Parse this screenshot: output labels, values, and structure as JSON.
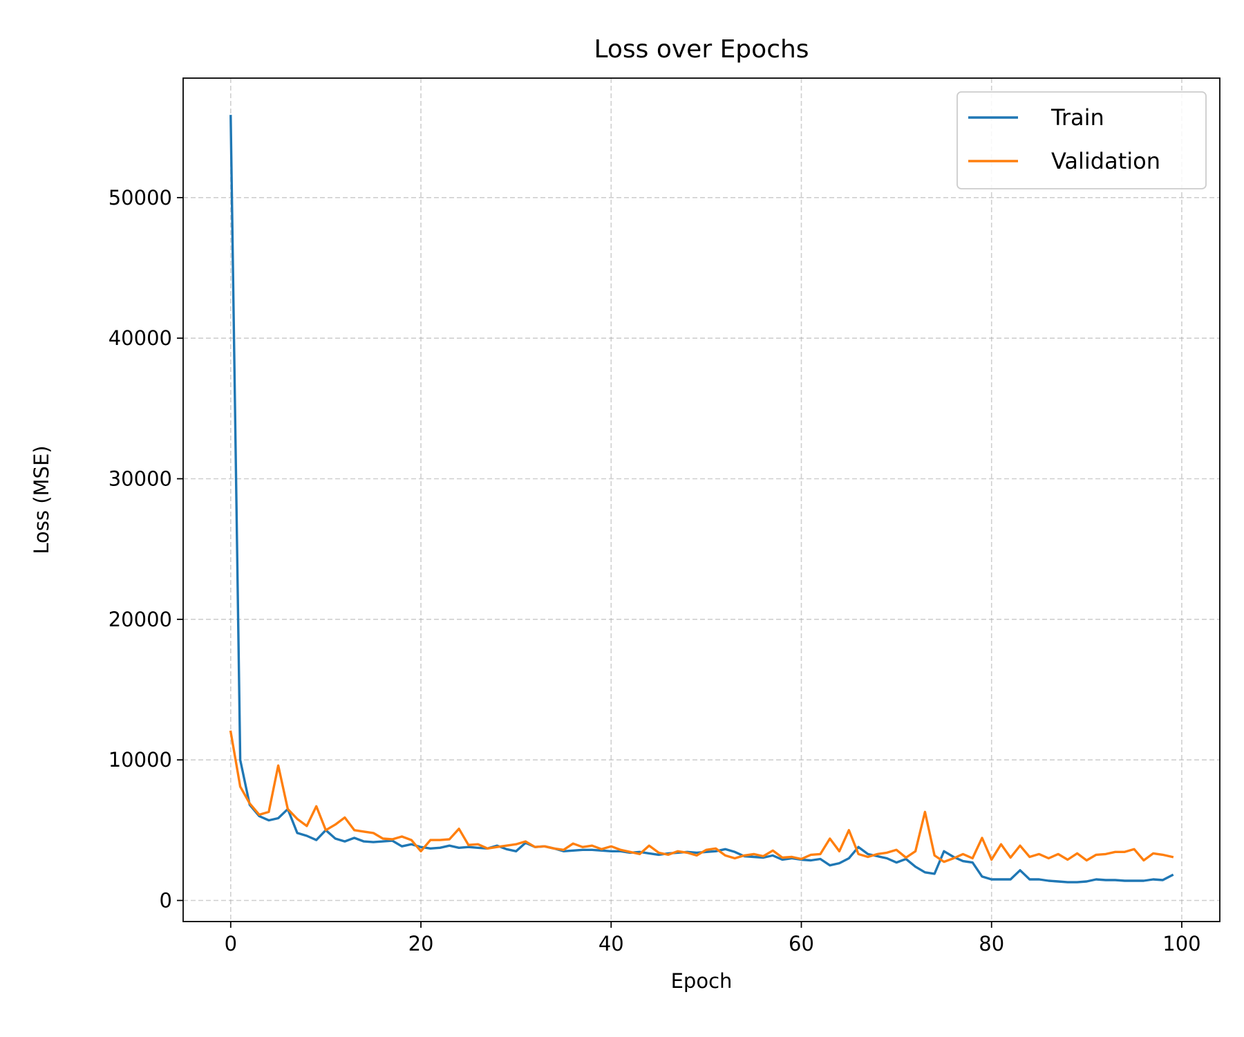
{
  "chart_data": {
    "type": "line",
    "title": "Loss over Epochs",
    "xlabel": "Epoch",
    "ylabel": "Loss (MSE)",
    "xlim": [
      -5,
      104
    ],
    "ylim": [
      -1500,
      58500
    ],
    "xticks": [
      0,
      20,
      40,
      60,
      80,
      100
    ],
    "yticks": [
      0,
      10000,
      20000,
      30000,
      40000,
      50000
    ],
    "grid": true,
    "legend_position": "top-right",
    "x": [
      0,
      1,
      2,
      3,
      4,
      5,
      6,
      7,
      8,
      9,
      10,
      11,
      12,
      13,
      14,
      15,
      16,
      17,
      18,
      19,
      20,
      21,
      22,
      23,
      24,
      25,
      26,
      27,
      28,
      29,
      30,
      31,
      32,
      33,
      34,
      35,
      36,
      37,
      38,
      39,
      40,
      41,
      42,
      43,
      44,
      45,
      46,
      47,
      48,
      49,
      50,
      51,
      52,
      53,
      54,
      55,
      56,
      57,
      58,
      59,
      60,
      61,
      62,
      63,
      64,
      65,
      66,
      67,
      68,
      69,
      70,
      71,
      72,
      73,
      74,
      75,
      76,
      77,
      78,
      79,
      80,
      81,
      82,
      83,
      84,
      85,
      86,
      87,
      88,
      89,
      90,
      91,
      92,
      93,
      94,
      95,
      96,
      97,
      98,
      99
    ],
    "series": [
      {
        "name": "Train",
        "color": "#1f77b4",
        "values": [
          55800,
          10000,
          6800,
          6000,
          5700,
          5850,
          6500,
          4800,
          4600,
          4300,
          5000,
          4400,
          4200,
          4450,
          4200,
          4150,
          4200,
          4250,
          3850,
          4000,
          3800,
          3700,
          3750,
          3900,
          3750,
          3800,
          3750,
          3700,
          3900,
          3650,
          3500,
          4100,
          3800,
          3850,
          3700,
          3500,
          3550,
          3600,
          3600,
          3550,
          3500,
          3500,
          3400,
          3450,
          3350,
          3250,
          3350,
          3400,
          3450,
          3400,
          3450,
          3500,
          3650,
          3450,
          3150,
          3100,
          3050,
          3200,
          2900,
          3000,
          2900,
          2850,
          2950,
          2500,
          2650,
          3000,
          3800,
          3300,
          3150,
          3000,
          2700,
          2950,
          2400,
          2000,
          1900,
          3500,
          3100,
          2800,
          2700,
          1700,
          1500,
          1500,
          1500,
          2150,
          1500,
          1500,
          1400,
          1350,
          1300,
          1300,
          1350,
          1500,
          1450,
          1450,
          1400,
          1400,
          1400,
          1500,
          1450,
          1800
        ]
      },
      {
        "name": "Validation",
        "color": "#ff7f0e",
        "values": [
          12000,
          8100,
          6900,
          6100,
          6300,
          9600,
          6500,
          5800,
          5300,
          6700,
          5000,
          5400,
          5900,
          5000,
          4900,
          4800,
          4400,
          4350,
          4550,
          4300,
          3500,
          4300,
          4300,
          4350,
          5100,
          3950,
          4000,
          3700,
          3800,
          3900,
          4000,
          4200,
          3800,
          3850,
          3700,
          3600,
          4050,
          3800,
          3900,
          3650,
          3850,
          3600,
          3450,
          3300,
          3900,
          3400,
          3250,
          3500,
          3400,
          3200,
          3600,
          3700,
          3200,
          3000,
          3200,
          3300,
          3150,
          3550,
          3050,
          3100,
          2950,
          3250,
          3300,
          4400,
          3500,
          5000,
          3300,
          3100,
          3300,
          3400,
          3600,
          3050,
          3500,
          6300,
          3200,
          2750,
          3000,
          3300,
          3000,
          4450,
          2900,
          4000,
          3050,
          3900,
          3100,
          3300,
          3000,
          3300,
          2900,
          3350,
          2850,
          3250,
          3300,
          3450,
          3450,
          3650,
          2850,
          3350,
          3250,
          3100
        ]
      }
    ]
  }
}
